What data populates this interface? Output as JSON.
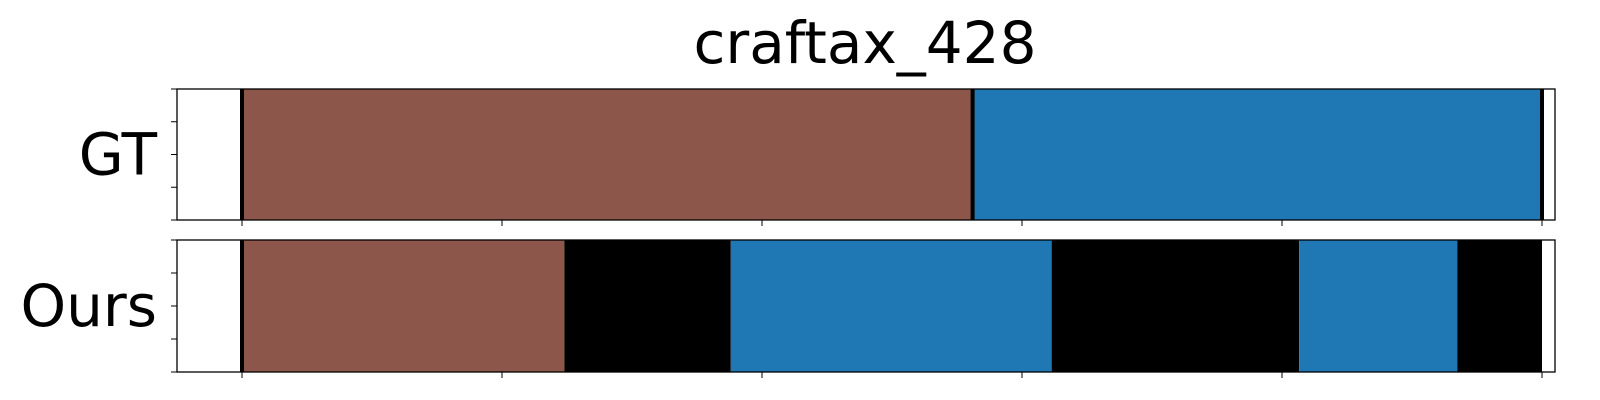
{
  "chart_data": {
    "type": "bar",
    "title": "craftax_428",
    "xlim": [
      -125,
      2525
    ],
    "ylim": [
      0,
      1
    ],
    "grid": false,
    "x_tick_values": [
      0,
      500,
      1000,
      1500,
      2000,
      2500
    ],
    "rows": [
      {
        "label": "GT",
        "segments": [
          {
            "start": 0,
            "end": 1405,
            "color": "#8c564b"
          },
          {
            "start": 1405,
            "end": 2500,
            "color": "#1f77b4"
          }
        ],
        "boundaries": [
          0,
          1405,
          2500
        ]
      },
      {
        "label": "Ours",
        "segments": [
          {
            "start": 0,
            "end": 620,
            "color": "#8c564b"
          },
          {
            "start": 620,
            "end": 940,
            "color": "#000000"
          },
          {
            "start": 940,
            "end": 1557,
            "color": "#1f77b4"
          },
          {
            "start": 1557,
            "end": 2033,
            "color": "#000000"
          },
          {
            "start": 2033,
            "end": 2337,
            "color": "#1f77b4"
          },
          {
            "start": 2337,
            "end": 2500,
            "color": "#000000"
          }
        ],
        "boundaries": [
          0
        ]
      }
    ]
  }
}
